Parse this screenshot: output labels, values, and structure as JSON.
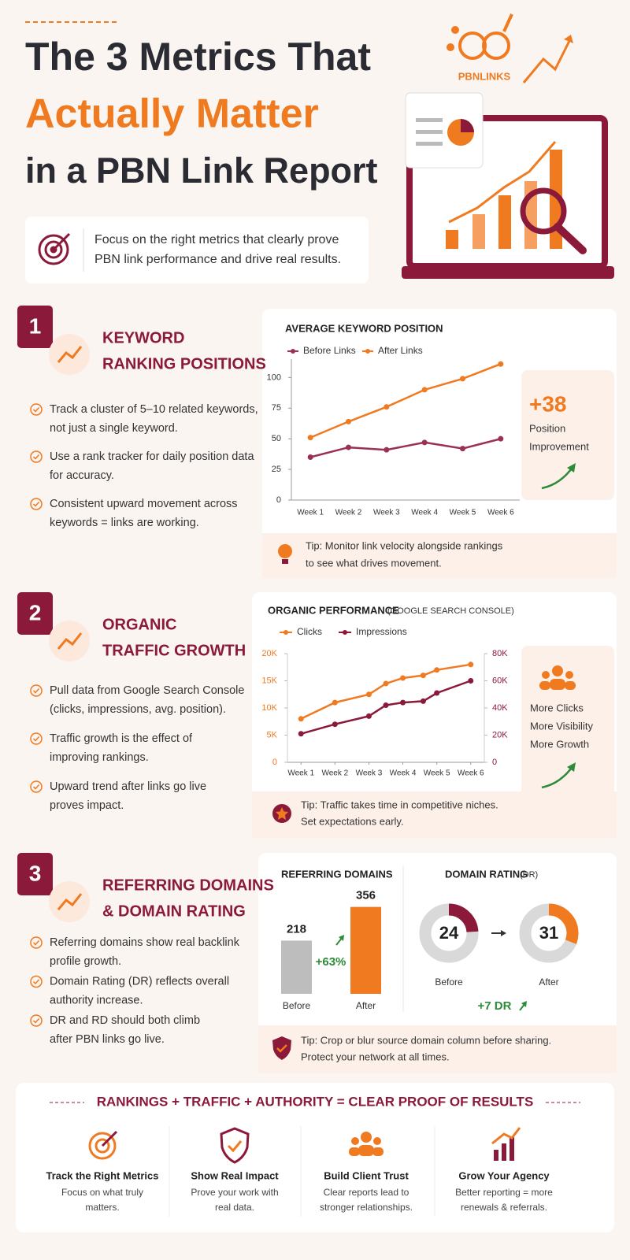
{
  "header": {
    "title_lines": [
      "The 3 Metrics That",
      "Actually Matter",
      "in a PBN Link Report"
    ],
    "brand": "PBNLINKS",
    "intro": [
      "Focus on the right metrics that clearly prove",
      "PBN link performance and drive real results."
    ]
  },
  "sections": [
    {
      "number": "1",
      "heading": [
        "KEYWORD",
        "RANKING POSITIONS"
      ],
      "bullets": [
        [
          "Track a cluster of 5–10 related keywords,",
          "not just a single keyword."
        ],
        [
          "Use a rank tracker for daily position data",
          "for accuracy."
        ],
        [
          "Consistent upward movement across",
          "keywords = links are working."
        ]
      ]
    },
    {
      "number": "2",
      "heading": [
        "ORGANIC",
        "TRAFFIC GROWTH"
      ],
      "bullets": [
        [
          "Pull data from Google Search Console",
          "(clicks, impressions, avg. position)."
        ],
        [
          "Traffic growth is the effect of",
          "improving rankings."
        ],
        [
          "Upward trend after links go live",
          "proves impact."
        ]
      ]
    },
    {
      "number": "3",
      "heading": [
        "REFERRING DOMAINS",
        "& DOMAIN RATING"
      ],
      "bullets": [
        [
          "Referring domains show real backlink",
          "profile growth."
        ],
        [
          "Domain Rating (DR) reflects overall",
          "authority increase."
        ],
        [
          "DR and RD should both climb",
          "after PBN links go live."
        ]
      ]
    }
  ],
  "chart_data": [
    {
      "type": "line",
      "title": "AVERAGE KEYWORD POSITION",
      "categories": [
        "Week 1",
        "Week 2",
        "Week 3",
        "Week 4",
        "Week 5",
        "Week 6"
      ],
      "series": [
        {
          "name": "Before Links",
          "color": "#9b2f55",
          "values": [
            35,
            43,
            41,
            47,
            42,
            50
          ]
        },
        {
          "name": "After Links",
          "color": "#f07a20",
          "values": [
            51,
            64,
            76,
            90,
            99,
            111
          ]
        }
      ],
      "ylim": [
        0,
        115
      ],
      "yticks": [
        0,
        25,
        50,
        75,
        100
      ],
      "grid": false,
      "callout": {
        "value": "+38",
        "lines": [
          "Position",
          "Improvement"
        ]
      },
      "tip": [
        "Tip: Monitor link velocity alongside rankings",
        "to see what drives movement."
      ]
    },
    {
      "type": "line",
      "title": "ORGANIC PERFORMANCE",
      "subtitle": "(GOOGLE SEARCH CONSOLE)",
      "x": [
        1,
        2,
        3,
        3.5,
        4,
        4.6,
        5,
        6
      ],
      "xlim": [
        0.6,
        6.4
      ],
      "xticks": [
        {
          "value": 1,
          "label": "Week 1"
        },
        {
          "value": 2,
          "label": "Week 2"
        },
        {
          "value": 3,
          "label": "Week 3"
        },
        {
          "value": 4,
          "label": "Week 4"
        },
        {
          "value": 5,
          "label": "Week 5"
        },
        {
          "value": 6,
          "label": "Week 6"
        }
      ],
      "series": [
        {
          "name": "Clicks",
          "color": "#f07a20",
          "values": [
            8000,
            11000,
            12500,
            14500,
            15500,
            16000,
            17000,
            18000
          ]
        },
        {
          "name": "Impressions",
          "color": "#8b1a3a",
          "axis": "y2",
          "values": [
            21000,
            28000,
            34000,
            42000,
            44000,
            45000,
            51000,
            60000
          ]
        }
      ],
      "ylim": [
        0,
        20000
      ],
      "yticks": [
        0,
        {
          "value": 5000,
          "label": "5K"
        },
        {
          "value": 10000,
          "label": "10K"
        },
        {
          "value": 15000,
          "label": "15K"
        },
        {
          "value": 20000,
          "label": "20K"
        }
      ],
      "y2lim": [
        0,
        80000
      ],
      "y2ticks": [
        0,
        {
          "value": 20000,
          "label": "20K"
        },
        {
          "value": 40000,
          "label": "40K"
        },
        {
          "value": 60000,
          "label": "60K"
        },
        {
          "value": 80000,
          "label": "80K"
        }
      ],
      "grid": false,
      "callout": {
        "lines": [
          "More Clicks",
          "More Visibility",
          "More Growth"
        ]
      },
      "tip": [
        "Tip: Traffic takes time in competitive niches.",
        "Set expectations early."
      ]
    },
    {
      "type": "bar",
      "title": "REFERRING DOMAINS",
      "categories": [
        "Before",
        "After"
      ],
      "values": [
        218,
        356
      ],
      "colors": [
        "#bdbdbd",
        "#f07a20"
      ],
      "ylim": [
        0,
        400
      ],
      "change": "+63%"
    },
    {
      "type": "donut",
      "title": "DOMAIN RATING",
      "subtitle": "(DR)",
      "categories": [
        "Before",
        "After"
      ],
      "values": [
        24,
        31
      ],
      "colors": [
        "#8b1a3a",
        "#f07a20"
      ],
      "ylim": [
        0,
        100
      ],
      "change": "+7 DR",
      "tip": [
        "Tip: Crop or blur source domain column before sharing.",
        "Protect your network at all times."
      ]
    }
  ],
  "footer": {
    "headline": "RANKINGS + TRAFFIC + AUTHORITY = CLEAR PROOF OF RESULTS",
    "items": [
      {
        "title": "Track the Right Metrics",
        "desc": [
          "Focus on what truly",
          "matters."
        ]
      },
      {
        "title": "Show Real Impact",
        "desc": [
          "Prove your work with",
          "real data."
        ]
      },
      {
        "title": "Build Client Trust",
        "desc": [
          "Clear reports lead to",
          "stronger relationships."
        ]
      },
      {
        "title": "Grow Your Agency",
        "desc": [
          "Better reporting = more",
          "renewals & referrals."
        ]
      }
    ]
  }
}
